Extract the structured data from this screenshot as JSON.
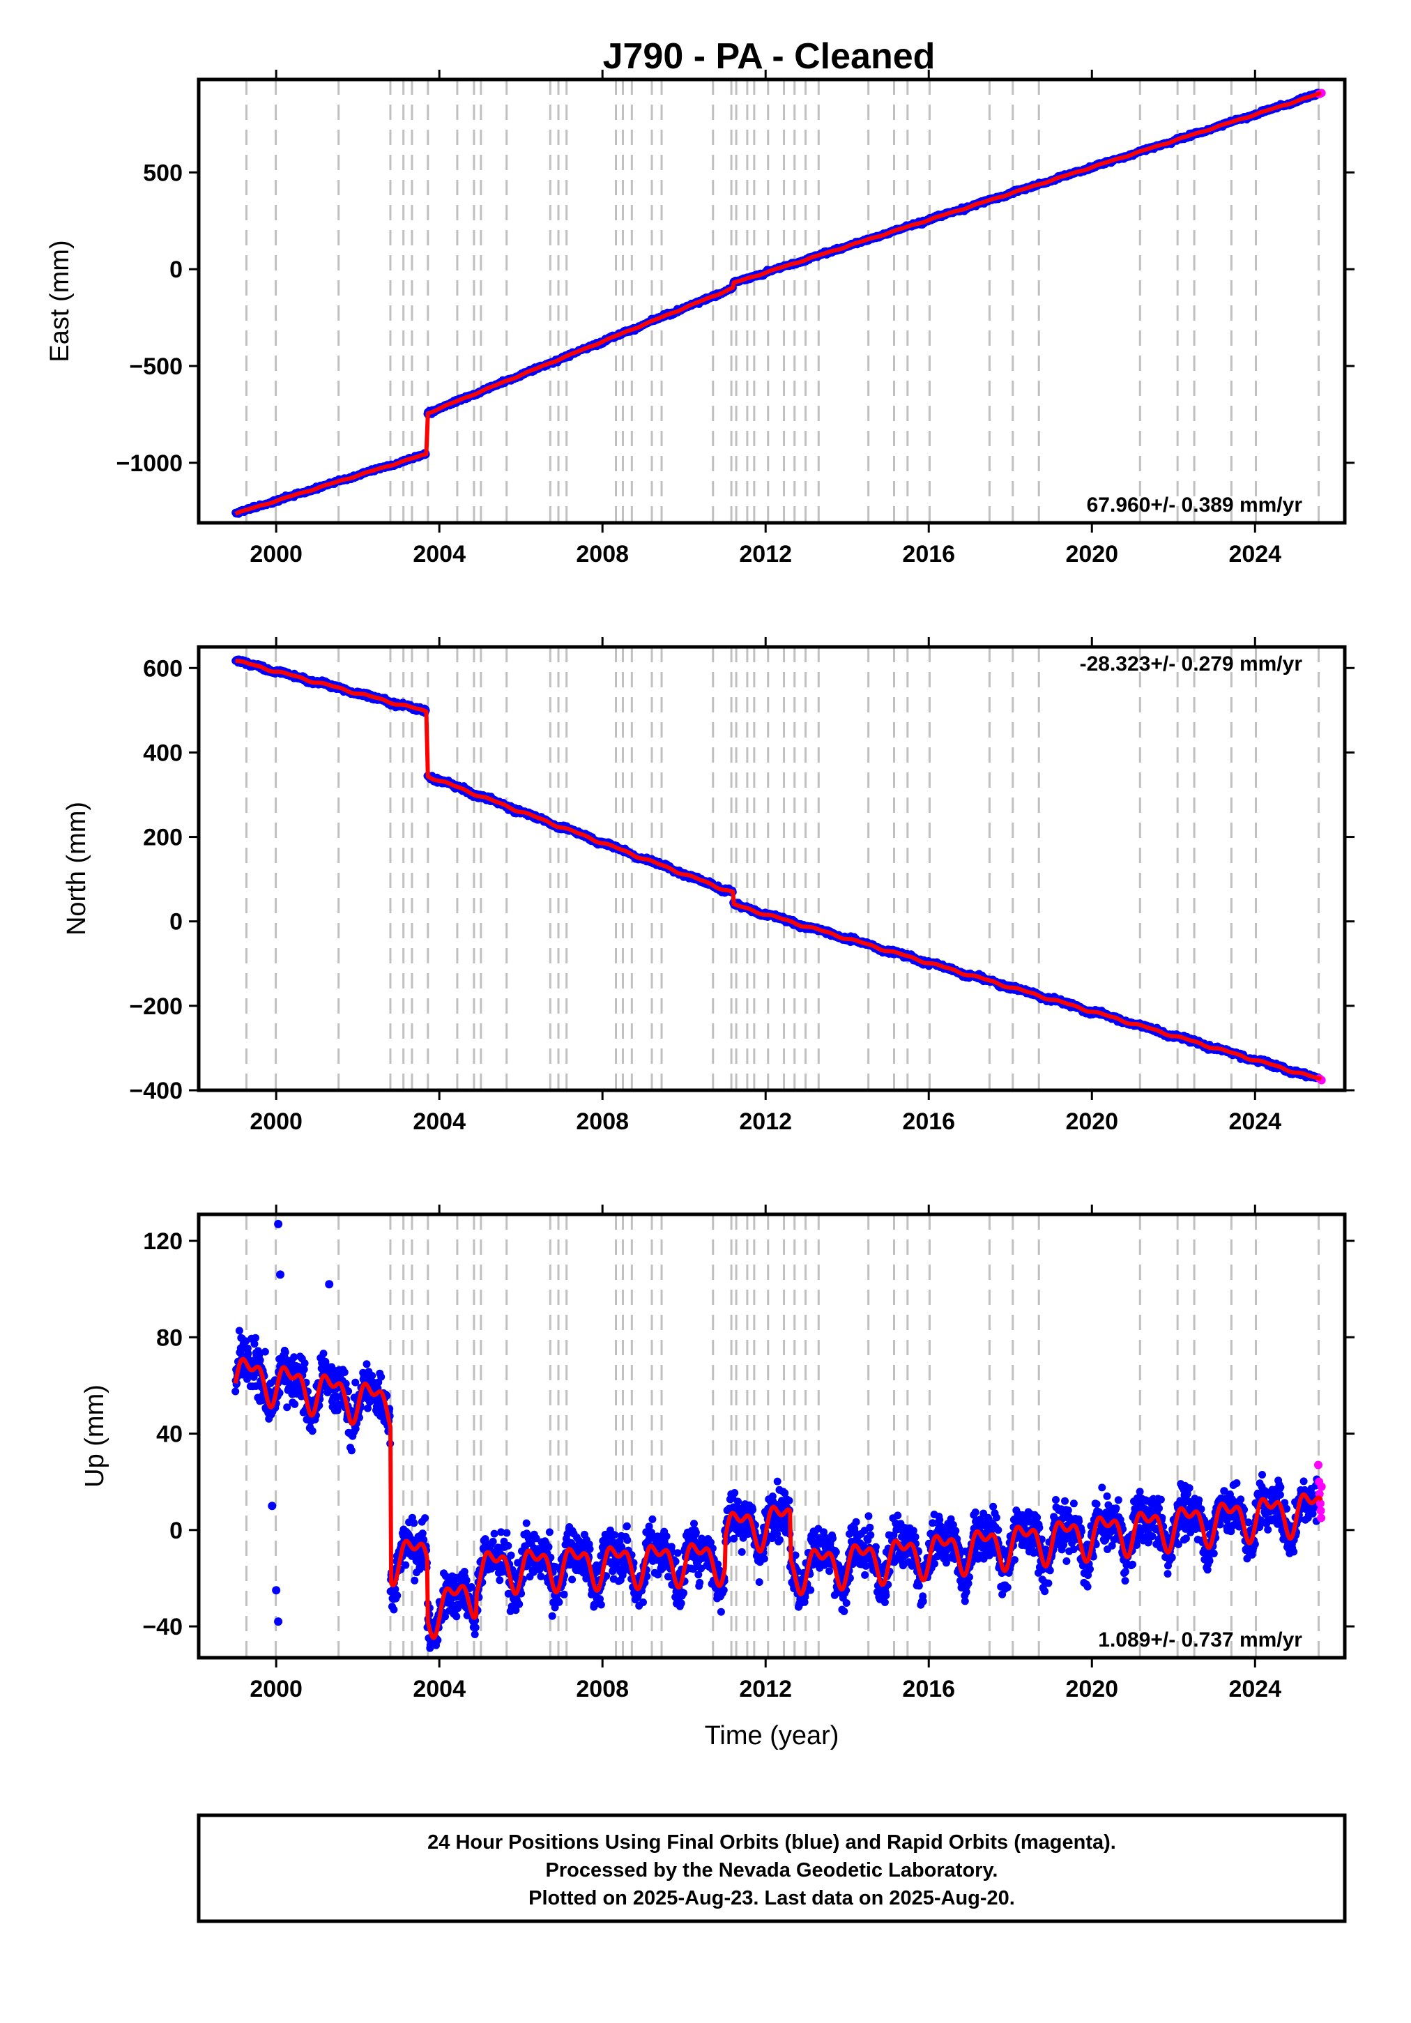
{
  "title": "J790  - PA - Cleaned",
  "x_axis_label": "Time (year)",
  "x_tick_labels": [
    "2000",
    "2004",
    "2008",
    "2012",
    "2016",
    "2020",
    "2024"
  ],
  "x_ticks": [
    2000,
    2004,
    2008,
    2012,
    2016,
    2020,
    2024
  ],
  "xlim": [
    1998.1,
    2026.2
  ],
  "colors": {
    "final_orbits": "#0000ff",
    "rapid_orbits": "#ff00ff",
    "model_fit": "#ff0000",
    "event_lines": "#c0c0c0",
    "frame": "#000000"
  },
  "event_lines_years": [
    1999.27,
    1999.99,
    2001.53,
    2002.8,
    2003.12,
    2003.33,
    2003.72,
    2004.44,
    2004.85,
    2005.02,
    2005.65,
    2006.72,
    2006.92,
    2007.12,
    2008.33,
    2008.5,
    2008.72,
    2009.21,
    2009.45,
    2010.71,
    2011.16,
    2011.28,
    2011.55,
    2011.72,
    2012.06,
    2012.45,
    2012.71,
    2012.98,
    2013.3,
    2014.52,
    2015.15,
    2015.48,
    2016.02,
    2017.49,
    2018.06,
    2018.7,
    2021.18,
    2022.1,
    2022.51,
    2023.42,
    2024.02,
    2025.56
  ],
  "chart_data": [
    {
      "type": "scatter",
      "name": "east",
      "ylabel": "East (mm)",
      "ylim": [
        -1310,
        980
      ],
      "y_ticks": [
        -1000,
        -500,
        0,
        500
      ],
      "y_tick_labels": [
        "−1000",
        "−500",
        "0",
        "500"
      ],
      "rate_text": "67.960+/- 0.389 mm/yr",
      "rate_position": "bottom-right",
      "x_range": [
        1999.0,
        2025.63
      ],
      "breaks": [
        {
          "start": 1999.0,
          "end": 2003.68,
          "y0": -1262,
          "y1": -955
        },
        {
          "start": 2003.7,
          "end": 2011.2,
          "y0": -745,
          "y1": -97,
          "postseismic": 55
        },
        {
          "start": 2011.2,
          "end": 2025.63,
          "y0": -72,
          "y1": 910
        }
      ],
      "noise": 6,
      "seasonal_amp": 2,
      "rapid_points": [
        {
          "x": 2025.58,
          "y": 905
        },
        {
          "x": 2025.63,
          "y": 910
        }
      ]
    },
    {
      "type": "scatter",
      "name": "north",
      "ylabel": "North (mm)",
      "ylim": [
        -400,
        650
      ],
      "y_ticks": [
        -400,
        -200,
        0,
        200,
        400,
        600
      ],
      "y_tick_labels": [
        "−400",
        "−200",
        "0",
        "200",
        "400",
        "600"
      ],
      "rate_text": "-28.323+/- 0.279 mm/yr",
      "rate_position": "top-right",
      "x_range": [
        1999.0,
        2025.63
      ],
      "breaks": [
        {
          "start": 1999.0,
          "end": 2003.68,
          "y0": 618,
          "y1": 497
        },
        {
          "start": 2003.7,
          "end": 2011.2,
          "y0": 345,
          "y1": 68,
          "postseismic": 22
        },
        {
          "start": 2011.2,
          "end": 2025.63,
          "y0": 40,
          "y1": -375
        }
      ],
      "noise": 4,
      "seasonal_amp": 2,
      "rapid_points": [
        {
          "x": 2025.58,
          "y": -372
        },
        {
          "x": 2025.63,
          "y": -376
        }
      ]
    },
    {
      "type": "scatter",
      "name": "up",
      "ylabel": "Up (mm)",
      "ylim": [
        -53,
        131
      ],
      "y_ticks": [
        -40,
        0,
        40,
        80,
        120
      ],
      "y_tick_labels": [
        "−40",
        "0",
        "40",
        "80",
        "120"
      ],
      "rate_text": "1.089+/- 0.737 mm/yr",
      "rate_position": "bottom-right",
      "x_range": [
        1999.0,
        2025.63
      ],
      "breaks": [
        {
          "start": 1999.0,
          "end": 2002.8,
          "y0": 65,
          "y1": 52
        },
        {
          "start": 2002.8,
          "end": 2003.7,
          "y0": -12,
          "y1": -10
        },
        {
          "start": 2003.7,
          "end": 2004.9,
          "y0": -35,
          "y1": -25
        },
        {
          "start": 2004.9,
          "end": 2011.0,
          "y0": -16,
          "y1": -12
        },
        {
          "start": 2011.0,
          "end": 2012.6,
          "y0": 0,
          "y1": 4
        },
        {
          "start": 2012.6,
          "end": 2025.63,
          "y0": -16,
          "y1": 9
        }
      ],
      "noise": 7,
      "seasonal_amp": 7,
      "outliers": [
        {
          "x": 2000.05,
          "y": 127
        },
        {
          "x": 2000.1,
          "y": 106
        },
        {
          "x": 2001.3,
          "y": 102
        },
        {
          "x": 1999.9,
          "y": 10
        },
        {
          "x": 2000.0,
          "y": -25
        },
        {
          "x": 2000.05,
          "y": -38
        },
        {
          "x": 2003.9,
          "y": -47
        }
      ],
      "rapid_points": [
        {
          "x": 2025.55,
          "y": 27
        },
        {
          "x": 2025.57,
          "y": 20
        },
        {
          "x": 2025.58,
          "y": 15
        },
        {
          "x": 2025.6,
          "y": 11
        },
        {
          "x": 2025.61,
          "y": 8
        },
        {
          "x": 2025.62,
          "y": 5
        },
        {
          "x": 2025.63,
          "y": 18
        }
      ]
    }
  ],
  "footer": {
    "line1": "24 Hour Positions Using Final Orbits (blue) and Rapid Orbits (magenta).",
    "line2": "Processed by the Nevada Geodetic Laboratory.",
    "line3": "Plotted on 2025-Aug-23. Last data on 2025-Aug-20."
  }
}
